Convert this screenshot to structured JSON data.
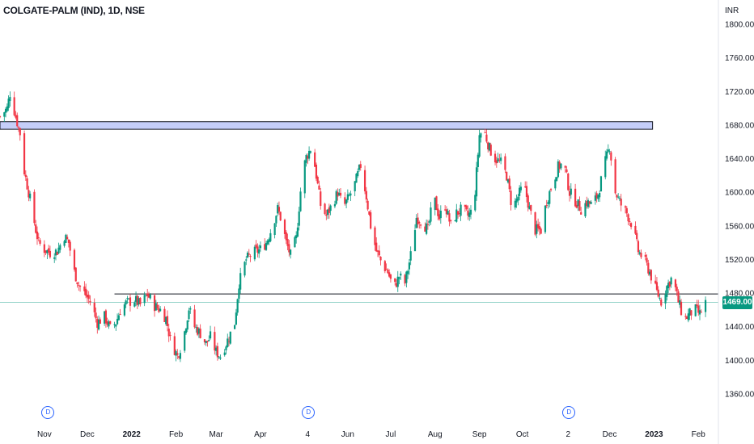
{
  "header": {
    "symbol": "COLGATE-PALM (IND), 1D, NSE",
    "currency": "INR"
  },
  "last_price": "1469.00",
  "colors": {
    "up": "#089981",
    "down": "#f23645",
    "zone_fill": "#c5cef9",
    "zone_border": "#131722",
    "support_line": "#131722",
    "price_line": "#089981",
    "dividend_marker": "#2962ff"
  },
  "dividend_markers": [
    {
      "label": "D",
      "date": "2021-11-03"
    },
    {
      "label": "D",
      "date": "2022-05-04"
    },
    {
      "label": "D",
      "date": "2022-11-02"
    }
  ],
  "chart_data": {
    "type": "candlestick",
    "title": "COLGATE-PALM (IND), 1D, NSE",
    "ylabel": "INR",
    "ylim": [
      1330,
      1825
    ],
    "y_ticks": [
      1800,
      1760,
      1720,
      1680,
      1640,
      1600,
      1560,
      1520,
      1480,
      1440,
      1400,
      1360
    ],
    "y_tick_labels": [
      "1800.00",
      "1760.00",
      "1720.00",
      "1680.00",
      "1640.00",
      "1600.00",
      "1560.00",
      "1520.00",
      "1480.00",
      "1440.00",
      "1400.00",
      "1360.00"
    ],
    "x_range": [
      "2021-10-01",
      "2023-02-15"
    ],
    "x_ticks": [
      {
        "label": "Nov",
        "date": "2021-11-01",
        "bold": false
      },
      {
        "label": "Dec",
        "date": "2021-12-01",
        "bold": false
      },
      {
        "label": "2022",
        "date": "2022-01-01",
        "bold": true
      },
      {
        "label": "Feb",
        "date": "2022-02-01",
        "bold": false
      },
      {
        "label": "Mar",
        "date": "2022-03-01",
        "bold": false
      },
      {
        "label": "Apr",
        "date": "2022-04-01",
        "bold": false
      },
      {
        "label": "4",
        "date": "2022-05-04",
        "bold": false
      },
      {
        "label": "Jun",
        "date": "2022-06-01",
        "bold": false
      },
      {
        "label": "Jul",
        "date": "2022-07-01",
        "bold": false
      },
      {
        "label": "Aug",
        "date": "2022-08-01",
        "bold": false
      },
      {
        "label": "Sep",
        "date": "2022-09-01",
        "bold": false
      },
      {
        "label": "Oct",
        "date": "2022-10-01",
        "bold": false
      },
      {
        "label": "2",
        "date": "2022-11-02",
        "bold": false
      },
      {
        "label": "Dec",
        "date": "2022-12-01",
        "bold": false
      },
      {
        "label": "2023",
        "date": "2023-01-01",
        "bold": true
      },
      {
        "label": "Feb",
        "date": "2023-02-01",
        "bold": false
      }
    ],
    "resistance_zone": {
      "from": 1675,
      "to": 1684,
      "start": "2021-10-01",
      "end": "2022-12-31"
    },
    "support_line": {
      "value": 1479,
      "start": "2021-12-20",
      "end": "2023-02-15"
    },
    "last_price_line": 1469,
    "close_path": [
      [
        "2021-10-01",
        1690
      ],
      [
        "2021-10-06",
        1700
      ],
      [
        "2021-10-08",
        1718
      ],
      [
        "2021-10-12",
        1690
      ],
      [
        "2021-10-15",
        1670
      ],
      [
        "2021-10-18",
        1625
      ],
      [
        "2021-10-22",
        1592
      ],
      [
        "2021-10-26",
        1555
      ],
      [
        "2021-10-28",
        1540
      ],
      [
        "2021-11-01",
        1532
      ],
      [
        "2021-11-05",
        1528
      ],
      [
        "2021-11-10",
        1530
      ],
      [
        "2021-11-15",
        1548
      ],
      [
        "2021-11-18",
        1540
      ],
      [
        "2021-11-22",
        1505
      ],
      [
        "2021-11-25",
        1490
      ],
      [
        "2021-11-29",
        1480
      ],
      [
        "2021-12-03",
        1470
      ],
      [
        "2021-12-08",
        1445
      ],
      [
        "2021-12-13",
        1452
      ],
      [
        "2021-12-17",
        1438
      ],
      [
        "2021-12-21",
        1445
      ],
      [
        "2021-12-24",
        1460
      ],
      [
        "2021-12-28",
        1468
      ],
      [
        "2022-01-03",
        1472
      ],
      [
        "2022-01-07",
        1466
      ],
      [
        "2022-01-12",
        1478
      ],
      [
        "2022-01-17",
        1465
      ],
      [
        "2022-01-21",
        1460
      ],
      [
        "2022-01-25",
        1450
      ],
      [
        "2022-01-28",
        1425
      ],
      [
        "2022-02-02",
        1405
      ],
      [
        "2022-02-06",
        1425
      ],
      [
        "2022-02-10",
        1462
      ],
      [
        "2022-02-14",
        1440
      ],
      [
        "2022-02-18",
        1432
      ],
      [
        "2022-02-22",
        1420
      ],
      [
        "2022-02-25",
        1428
      ],
      [
        "2022-03-01",
        1410
      ],
      [
        "2022-03-04",
        1405
      ],
      [
        "2022-03-08",
        1420
      ],
      [
        "2022-03-11",
        1432
      ],
      [
        "2022-03-14",
        1445
      ],
      [
        "2022-03-17",
        1492
      ],
      [
        "2022-03-22",
        1520
      ],
      [
        "2022-03-27",
        1528
      ],
      [
        "2022-04-01",
        1532
      ],
      [
        "2022-04-05",
        1540
      ],
      [
        "2022-04-09",
        1558
      ],
      [
        "2022-04-13",
        1580
      ],
      [
        "2022-04-16",
        1565
      ],
      [
        "2022-04-19",
        1540
      ],
      [
        "2022-04-22",
        1525
      ],
      [
        "2022-04-26",
        1545
      ],
      [
        "2022-04-30",
        1620
      ],
      [
        "2022-05-03",
        1642
      ],
      [
        "2022-05-07",
        1655
      ],
      [
        "2022-05-10",
        1620
      ],
      [
        "2022-05-13",
        1585
      ],
      [
        "2022-05-17",
        1572
      ],
      [
        "2022-05-21",
        1585
      ],
      [
        "2022-05-25",
        1600
      ],
      [
        "2022-05-29",
        1582
      ],
      [
        "2022-06-02",
        1595
      ],
      [
        "2022-06-06",
        1610
      ],
      [
        "2022-06-10",
        1632
      ],
      [
        "2022-06-14",
        1595
      ],
      [
        "2022-06-17",
        1560
      ],
      [
        "2022-06-21",
        1530
      ],
      [
        "2022-06-25",
        1515
      ],
      [
        "2022-06-29",
        1505
      ],
      [
        "2022-07-03",
        1485
      ],
      [
        "2022-07-07",
        1500
      ],
      [
        "2022-07-11",
        1492
      ],
      [
        "2022-07-15",
        1525
      ],
      [
        "2022-07-19",
        1570
      ],
      [
        "2022-07-23",
        1565
      ],
      [
        "2022-07-27",
        1555
      ],
      [
        "2022-07-31",
        1595
      ],
      [
        "2022-08-04",
        1570
      ],
      [
        "2022-08-08",
        1585
      ],
      [
        "2022-08-12",
        1560
      ],
      [
        "2022-08-16",
        1575
      ],
      [
        "2022-08-20",
        1580
      ],
      [
        "2022-08-24",
        1572
      ],
      [
        "2022-08-28",
        1580
      ],
      [
        "2022-09-01",
        1668
      ],
      [
        "2022-09-04",
        1675
      ],
      [
        "2022-09-08",
        1652
      ],
      [
        "2022-09-12",
        1640
      ],
      [
        "2022-09-16",
        1635
      ],
      [
        "2022-09-20",
        1620
      ],
      [
        "2022-09-24",
        1580
      ],
      [
        "2022-09-28",
        1595
      ],
      [
        "2022-10-02",
        1610
      ],
      [
        "2022-10-06",
        1580
      ],
      [
        "2022-10-10",
        1555
      ],
      [
        "2022-10-14",
        1555
      ],
      [
        "2022-10-18",
        1590
      ],
      [
        "2022-10-22",
        1610
      ],
      [
        "2022-10-26",
        1630
      ],
      [
        "2022-10-30",
        1635
      ],
      [
        "2022-11-03",
        1600
      ],
      [
        "2022-11-07",
        1590
      ],
      [
        "2022-11-11",
        1580
      ],
      [
        "2022-11-15",
        1588
      ],
      [
        "2022-11-19",
        1585
      ],
      [
        "2022-11-23",
        1598
      ],
      [
        "2022-11-27",
        1630
      ],
      [
        "2022-12-01",
        1655
      ],
      [
        "2022-12-05",
        1600
      ],
      [
        "2022-12-09",
        1585
      ],
      [
        "2022-12-13",
        1575
      ],
      [
        "2022-12-17",
        1560
      ],
      [
        "2022-12-21",
        1530
      ],
      [
        "2022-12-25",
        1520
      ],
      [
        "2022-12-29",
        1505
      ],
      [
        "2023-01-02",
        1485
      ],
      [
        "2023-01-06",
        1470
      ],
      [
        "2023-01-10",
        1488
      ],
      [
        "2023-01-14",
        1500
      ],
      [
        "2023-01-18",
        1470
      ],
      [
        "2023-01-22",
        1448
      ],
      [
        "2023-01-26",
        1456
      ],
      [
        "2023-01-30",
        1460
      ],
      [
        "2023-02-02",
        1455
      ],
      [
        "2023-02-06",
        1469
      ]
    ]
  }
}
